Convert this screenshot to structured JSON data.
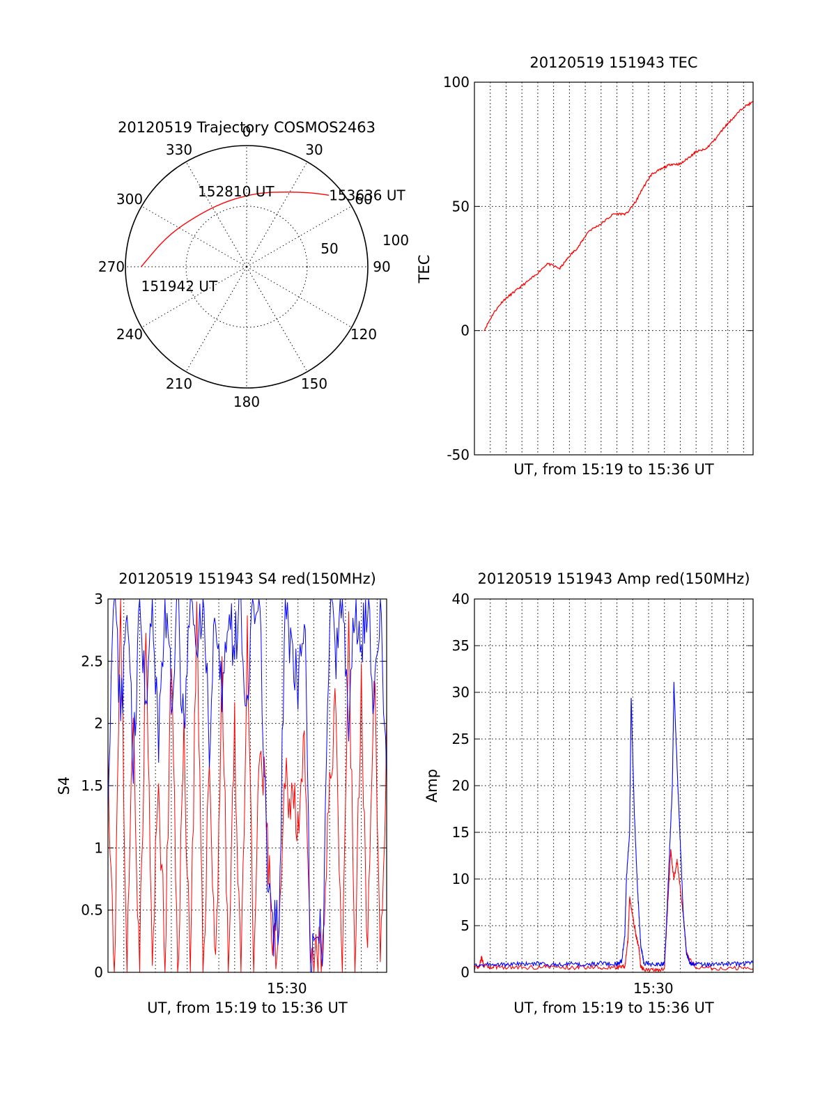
{
  "chart_data": [
    {
      "type": "polar",
      "title": "20120519 Trajectory COSMOS2463",
      "angle_ticks": [
        "0",
        "30",
        "60",
        "90",
        "120",
        "150",
        "180",
        "210",
        "240",
        "270",
        "300",
        "330"
      ],
      "radius_ticks": [
        "50",
        "100"
      ],
      "rlim": [
        0,
        100
      ],
      "series": [
        {
          "color": "#ff0000",
          "points": [
            {
              "az": 270,
              "r": 87
            },
            {
              "az": 292,
              "r": 70
            },
            {
              "az": 320,
              "r": 58
            },
            {
              "az": 346,
              "r": 57
            },
            {
              "az": 10,
              "r": 62
            },
            {
              "az": 28,
              "r": 70
            },
            {
              "az": 41,
              "r": 81
            },
            {
              "az": 49,
              "r": 90
            }
          ]
        }
      ],
      "annotations": [
        {
          "text": "153636 UT",
          "az": 49,
          "r": 90
        },
        {
          "text": "152810 UT",
          "az": 346,
          "r": 57
        },
        {
          "text": "151942 UT",
          "az": 270,
          "r": 87
        }
      ]
    },
    {
      "type": "line",
      "title": "20120519 151943 TEC",
      "xlabel": "UT, from 15:19 to 15:36 UT",
      "ylabel": "TEC",
      "ylim": [
        -50,
        100
      ],
      "yticks": [
        "100",
        "50",
        "0",
        "-50"
      ],
      "xlim": [
        0,
        17.6
      ],
      "grid": true,
      "series": [
        {
          "color": "#ff0000",
          "x": [
            0.6,
            1.2,
            1.8,
            2.4,
            3.0,
            3.8,
            4.6,
            5.4,
            6.0,
            6.6,
            7.2,
            8.0,
            8.8,
            9.6,
            10.2,
            10.6,
            11.2,
            11.8,
            12.4,
            13.0,
            13.6,
            14.0,
            14.6,
            15.2,
            15.8,
            16.4,
            17.0,
            17.6
          ],
          "y": [
            0,
            7,
            12,
            15,
            18,
            22,
            27,
            25,
            30,
            34,
            40,
            43,
            47,
            47,
            52,
            57,
            63,
            65,
            67,
            67,
            70,
            72,
            73,
            77,
            82,
            86,
            90,
            92
          ]
        }
      ]
    },
    {
      "type": "line",
      "title": "20120519 151943 S4 red(150MHz)",
      "xlabel": "UT, from 15:19 to 15:36 UT",
      "ylabel": "S4",
      "ylim": [
        0,
        3
      ],
      "yticks": [
        "3",
        "2.5",
        "2",
        "1.5",
        "1",
        "0.5",
        "0"
      ],
      "xticks": [
        {
          "x": 11.3,
          "label": "15:30"
        }
      ],
      "xlim": [
        0,
        17.6
      ],
      "grid": true,
      "series": [
        {
          "color": "#ff0000",
          "x": [
            0.0,
            0.4,
            0.8,
            1.2,
            1.6,
            2.0,
            2.4,
            2.8,
            3.2,
            3.6,
            4.0,
            4.4,
            4.8,
            5.2,
            5.6,
            6.0,
            6.4,
            6.8,
            7.2,
            7.6,
            8.0,
            8.4,
            8.8,
            9.2,
            9.6,
            10.0,
            10.4,
            10.8,
            11.2,
            11.6,
            12.0,
            12.4,
            12.8,
            13.2,
            13.6,
            14.0,
            14.4,
            14.8,
            15.2,
            15.6,
            16.0,
            16.4,
            16.8,
            17.2,
            17.6
          ],
          "y": [
            1.8,
            0.0,
            2.9,
            0.0,
            2.1,
            0.0,
            2.7,
            0.0,
            1.6,
            0.0,
            2.5,
            0.0,
            1.9,
            0.0,
            2.8,
            0.0,
            1.7,
            0.0,
            2.4,
            0.0,
            1.9,
            0.0,
            2.6,
            0.0,
            1.8,
            1.3,
            0.15,
            0.12,
            1.6,
            1.4,
            1.3,
            1.7,
            0.0,
            0.12,
            0.1,
            1.6,
            2.1,
            0.0,
            2.8,
            0.0,
            2.3,
            0.0,
            2.6,
            0.0,
            1.9
          ]
        },
        {
          "color": "#0000ff",
          "x": [
            0.0,
            0.4,
            0.8,
            1.2,
            1.6,
            2.0,
            2.4,
            2.8,
            3.2,
            3.6,
            4.0,
            4.4,
            4.8,
            5.2,
            5.6,
            6.0,
            6.4,
            6.8,
            7.2,
            7.6,
            8.0,
            8.4,
            8.8,
            9.2,
            9.6,
            10.0,
            10.4,
            10.8,
            11.2,
            11.6,
            12.0,
            12.4,
            12.8,
            13.2,
            13.6,
            14.0,
            14.4,
            14.8,
            15.2,
            15.6,
            16.0,
            16.4,
            16.8,
            17.2,
            17.6
          ],
          "y": [
            1.3,
            3.0,
            2.0,
            3.0,
            1.7,
            3.0,
            2.3,
            3.0,
            1.9,
            3.0,
            2.2,
            3.0,
            1.8,
            3.0,
            2.5,
            3.0,
            1.9,
            3.0,
            2.1,
            3.0,
            2.6,
            3.0,
            2.0,
            3.0,
            2.9,
            1.0,
            0.3,
            0.35,
            3.0,
            2.6,
            2.2,
            3.0,
            0.0,
            0.2,
            0.3,
            3.0,
            2.5,
            3.0,
            2.0,
            3.0,
            2.7,
            3.0,
            2.2,
            3.0,
            1.5
          ]
        }
      ]
    },
    {
      "type": "line",
      "title": "20120519 151943 Amp red(150MHz)",
      "xlabel": "UT, from 15:19 to 15:36 UT",
      "ylabel": "Amp",
      "ylim": [
        0,
        40
      ],
      "yticks": [
        "40",
        "35",
        "30",
        "25",
        "20",
        "15",
        "10",
        "5",
        "0"
      ],
      "xticks": [
        {
          "x": 11.3,
          "label": "15:30"
        }
      ],
      "xlim": [
        0,
        17.6
      ],
      "grid": true,
      "series": [
        {
          "color": "#ff0000",
          "x": [
            0.0,
            0.3,
            0.45,
            0.6,
            1.5,
            3.0,
            4.5,
            6.0,
            7.5,
            9.0,
            9.5,
            9.7,
            9.8,
            10.0,
            10.2,
            10.4,
            10.5,
            10.7,
            11.5,
            12.0,
            12.2,
            12.4,
            12.6,
            12.8,
            13.0,
            13.2,
            13.4,
            14.0,
            16.0,
            17.6
          ],
          "y": [
            0.5,
            0.6,
            1.6,
            0.6,
            0.6,
            0.5,
            0.6,
            0.5,
            0.6,
            0.5,
            0.6,
            3.5,
            8.0,
            6.0,
            4.0,
            2.5,
            0.6,
            0.3,
            0.2,
            0.4,
            7.0,
            13.0,
            10.0,
            12.0,
            9.0,
            6.0,
            2.0,
            0.5,
            0.4,
            0.5
          ]
        },
        {
          "color": "#0000ff",
          "x": [
            0.0,
            1.0,
            2.0,
            3.0,
            4.0,
            5.0,
            6.0,
            7.0,
            8.0,
            9.0,
            9.3,
            9.5,
            9.6,
            9.8,
            9.9,
            10.1,
            10.3,
            10.5,
            10.7,
            11.5,
            12.0,
            12.1,
            12.3,
            12.5,
            12.6,
            12.8,
            13.0,
            13.2,
            13.4,
            13.6,
            14.0,
            15.0,
            16.0,
            17.0,
            17.6
          ],
          "y": [
            0.8,
            0.9,
            0.8,
            0.9,
            0.9,
            0.8,
            0.9,
            0.8,
            1.0,
            0.9,
            1.2,
            4.0,
            10.0,
            15.0,
            29.5,
            17.0,
            9.0,
            3.0,
            1.0,
            0.8,
            1.0,
            4.0,
            12.0,
            20.0,
            31.0,
            22.0,
            14.0,
            6.0,
            2.0,
            1.0,
            0.9,
            0.8,
            0.9,
            0.9,
            1.2
          ]
        }
      ]
    }
  ]
}
